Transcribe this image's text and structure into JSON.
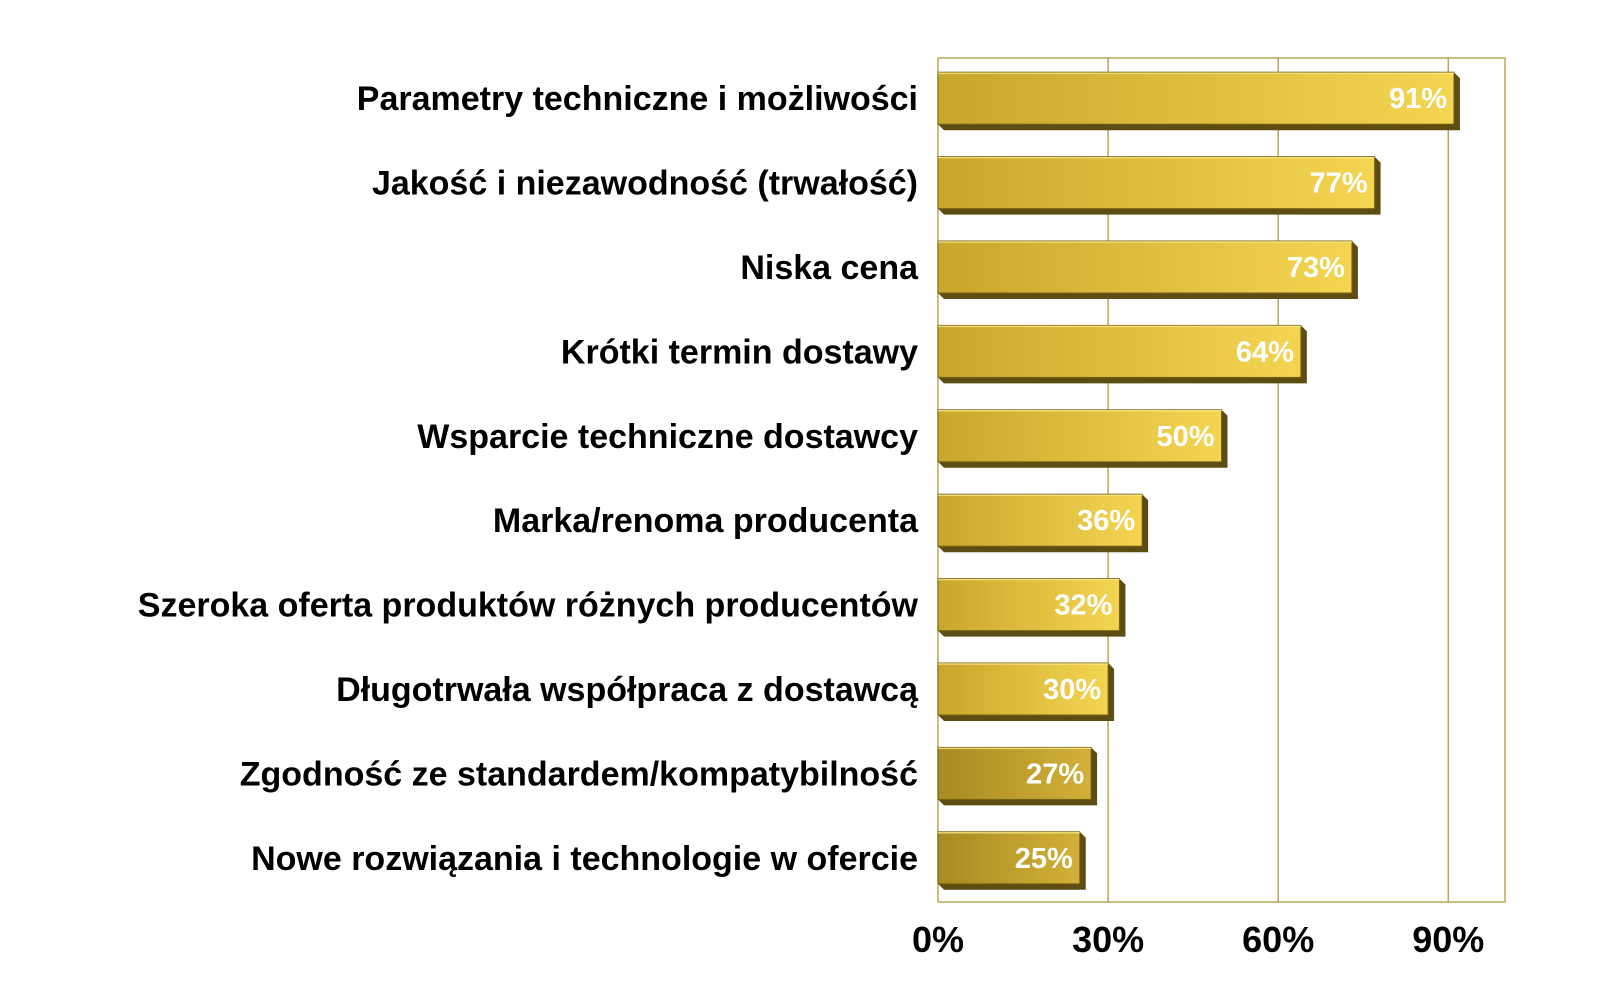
{
  "chart_data": {
    "type": "bar",
    "orientation": "horizontal",
    "categories": [
      "Parametry techniczne i możliwości",
      "Jakość i niezawodność (trwałość)",
      "Niska cena",
      "Krótki termin dostawy",
      "Wsparcie techniczne dostawcy",
      "Marka/renoma producenta",
      "Szeroka oferta produktów różnych producentów",
      "Długotrwała współpraca z dostawcą",
      "Zgodność ze standardem/kompatybilność",
      "Nowe rozwiązania i technologie w ofercie"
    ],
    "values": [
      91,
      77,
      73,
      64,
      50,
      36,
      32,
      30,
      27,
      25
    ],
    "value_labels": [
      "91%",
      "77%",
      "73%",
      "64%",
      "50%",
      "36%",
      "32%",
      "30%",
      "27%",
      "25%"
    ],
    "x_ticks": [
      0,
      30,
      60,
      90
    ],
    "x_tick_labels": [
      "0%",
      "30%",
      "60%",
      "90%"
    ],
    "xlim": [
      0,
      100
    ],
    "grid": true,
    "colors": {
      "bar_light": "#f2d04a",
      "bar_mid": "#d9b536",
      "bar_dark": "#a4861e",
      "bar_edge": "#7a6316",
      "bar_side": "#5e4d12",
      "grid": "#b8a85a",
      "plot_border": "#b8a85a",
      "value_text": "#ffffff",
      "label_text": "#000000"
    }
  }
}
